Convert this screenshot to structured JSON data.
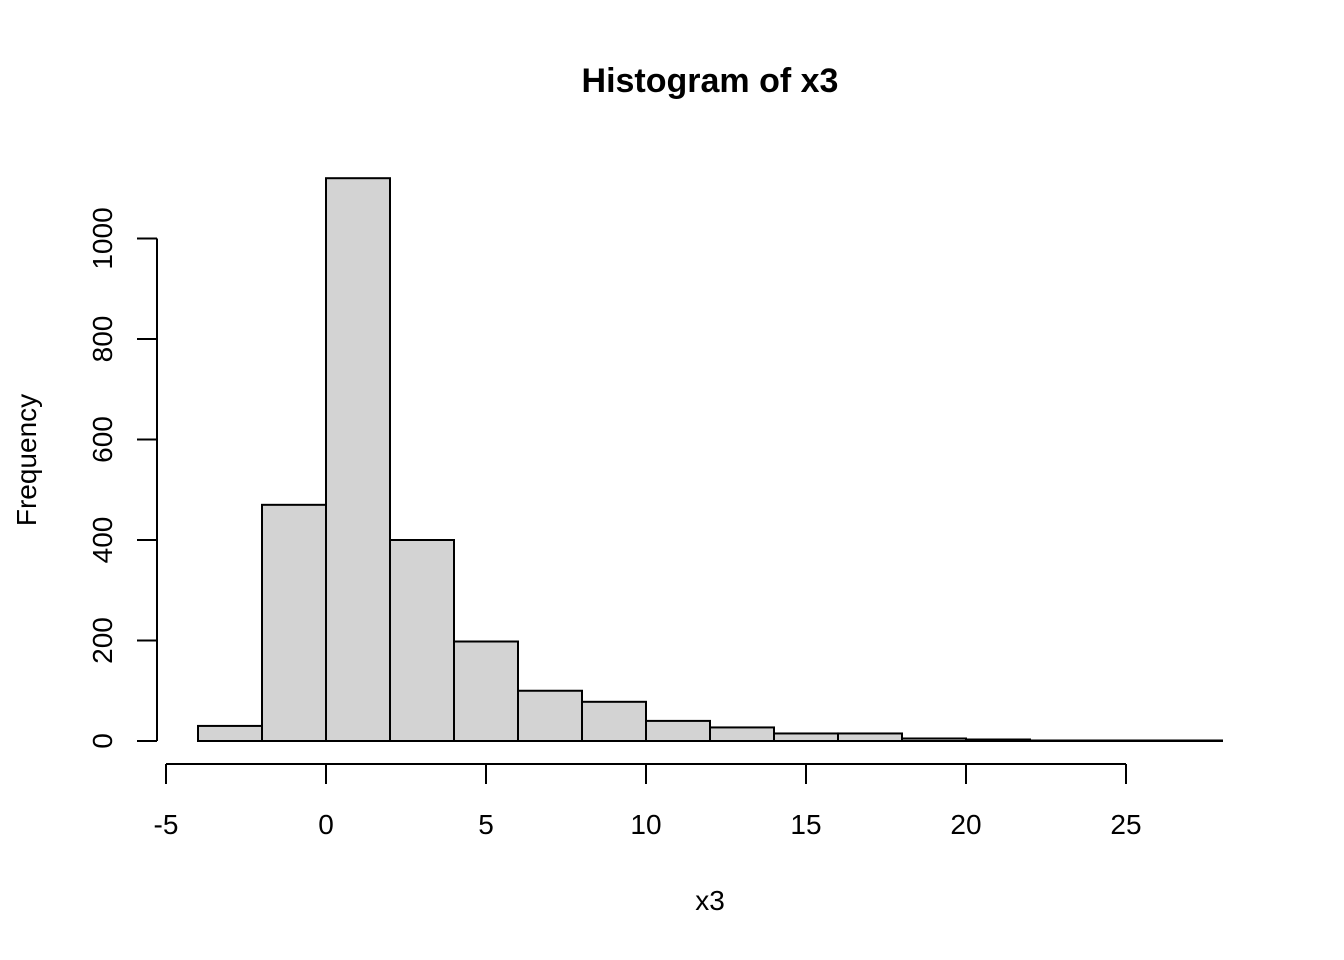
{
  "chart_data": {
    "type": "bar",
    "title": "Histogram of x3",
    "xlabel": "x3",
    "ylabel": "Frequency",
    "bin_edges": [
      -4,
      -2,
      0,
      2,
      4,
      6,
      8,
      10,
      12,
      14,
      16,
      18,
      20,
      22,
      24,
      26,
      28
    ],
    "values": [
      30,
      470,
      1120,
      400,
      198,
      100,
      78,
      40,
      27,
      15,
      15,
      5,
      3,
      1,
      1,
      1
    ],
    "xlim": [
      -5,
      28
    ],
    "ylim": [
      0,
      1120
    ],
    "x_ticks": [
      -5,
      0,
      5,
      10,
      15,
      20,
      25
    ],
    "y_ticks": [
      0,
      200,
      400,
      600,
      800,
      1000
    ],
    "grid": false,
    "colors": {
      "bar_fill": "#d3d3d3",
      "bar_stroke": "#000000"
    }
  }
}
